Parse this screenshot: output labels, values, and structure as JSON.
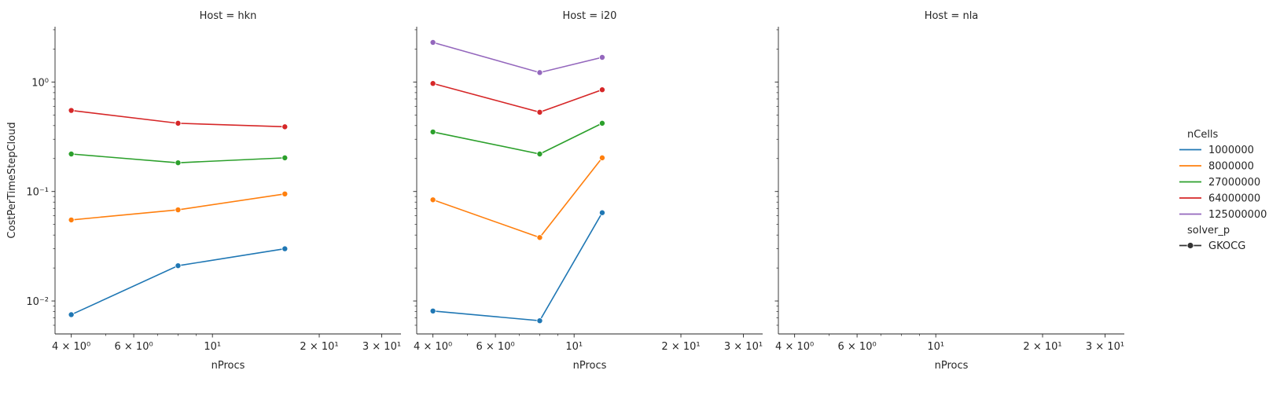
{
  "chart_data": {
    "type": "line",
    "x_scale": "log",
    "y_scale": "log",
    "xlabel": "nProcs",
    "ylabel": "CostPerTimeStepCloud",
    "xlim": [
      3.6,
      34
    ],
    "ylim": [
      0.005,
      3.2
    ],
    "x_ticks": [
      {
        "value": 4,
        "label": "4 × 10⁰"
      },
      {
        "value": 6,
        "label": "6 × 10⁰"
      },
      {
        "value": 10,
        "label": "10¹"
      },
      {
        "value": 20,
        "label": "2 × 10¹"
      },
      {
        "value": 30,
        "label": "3 × 10¹"
      }
    ],
    "y_ticks": [
      {
        "value": 0.01,
        "label": "10⁻²"
      },
      {
        "value": 0.1,
        "label": "10⁻¹"
      },
      {
        "value": 1,
        "label": "10⁰"
      }
    ],
    "grid": false,
    "legend": {
      "placement": "right",
      "hue_title": "nCells",
      "style_title": "solver_p",
      "style_entries": [
        "GKOCG"
      ]
    },
    "colors": {
      "1000000": "#1f77b4",
      "8000000": "#ff7f0e",
      "27000000": "#2ca02c",
      "64000000": "#d62728",
      "125000000": "#9467bd"
    },
    "hue_order": [
      "1000000",
      "8000000",
      "27000000",
      "64000000",
      "125000000"
    ],
    "panels": [
      {
        "title": "Host = hkn",
        "series": [
          {
            "name": "1000000",
            "x": [
              4,
              8,
              16
            ],
            "y": [
              0.0075,
              0.021,
              0.03
            ]
          },
          {
            "name": "8000000",
            "x": [
              4,
              8,
              16
            ],
            "y": [
              0.055,
              0.068,
              0.095
            ]
          },
          {
            "name": "27000000",
            "x": [
              4,
              8,
              16
            ],
            "y": [
              0.22,
              0.183,
              0.203
            ]
          },
          {
            "name": "64000000",
            "x": [
              4,
              8,
              16
            ],
            "y": [
              0.55,
              0.42,
              0.39
            ]
          }
        ]
      },
      {
        "title": "Host = i20",
        "series": [
          {
            "name": "1000000",
            "x": [
              4,
              8,
              12
            ],
            "y": [
              0.0081,
              0.0066,
              0.064
            ]
          },
          {
            "name": "8000000",
            "x": [
              4,
              8,
              12
            ],
            "y": [
              0.084,
              0.038,
              0.203
            ]
          },
          {
            "name": "27000000",
            "x": [
              4,
              8,
              12
            ],
            "y": [
              0.35,
              0.22,
              0.42
            ]
          },
          {
            "name": "64000000",
            "x": [
              4,
              8,
              12
            ],
            "y": [
              0.97,
              0.53,
              0.85
            ]
          },
          {
            "name": "125000000",
            "x": [
              4,
              8,
              12
            ],
            "y": [
              2.3,
              1.22,
              1.68
            ]
          }
        ]
      },
      {
        "title": "Host = nla",
        "series": []
      }
    ]
  }
}
